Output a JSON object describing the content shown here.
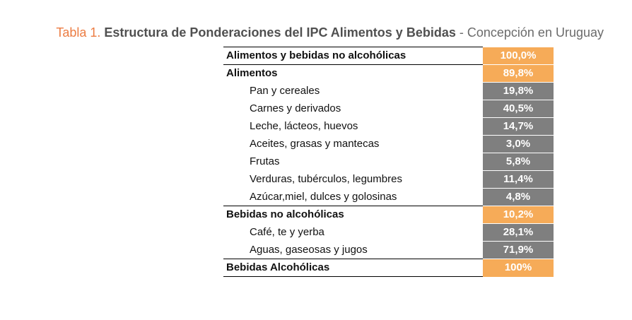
{
  "caption": {
    "prefix": "Tabla 1.",
    "title": "Estructura de Ponderaciones del IPC Alimentos y Bebidas",
    "subtitle": "- Concepción en Uruguay"
  },
  "colors": {
    "group_value_bg": "#f6ab58",
    "item_value_bg": "#7f7f7f",
    "caption_prefix": "#ec7c42"
  },
  "rows": [
    {
      "level": "group",
      "label": "Alimentos y bebidas no alcohólicas",
      "value": "100,0%"
    },
    {
      "level": "group",
      "label": "Alimentos",
      "value": "89,8%"
    },
    {
      "level": "item",
      "label": "Pan y cereales",
      "value": "19,8%"
    },
    {
      "level": "item",
      "label": "Carnes y derivados",
      "value": "40,5%"
    },
    {
      "level": "item",
      "label": "Leche, lácteos, huevos",
      "value": "14,7%"
    },
    {
      "level": "item",
      "label": "Aceites, grasas y mantecas",
      "value": "3,0%"
    },
    {
      "level": "item",
      "label": "Frutas",
      "value": "5,8%"
    },
    {
      "level": "item",
      "label": "Verduras, tubérculos, legumbres",
      "value": "11,4%"
    },
    {
      "level": "item",
      "label": "Azúcar,miel, dulces y golosinas",
      "value": "4,8%"
    },
    {
      "level": "group",
      "label": "Bebidas no alcohólicas",
      "value": "10,2%"
    },
    {
      "level": "item",
      "label": "Café, te y yerba",
      "value": "28,1%"
    },
    {
      "level": "item",
      "label": "Aguas, gaseosas y jugos",
      "value": "71,9%"
    },
    {
      "level": "group",
      "label": "Bebidas Alcohólicas",
      "value": "100%"
    }
  ]
}
